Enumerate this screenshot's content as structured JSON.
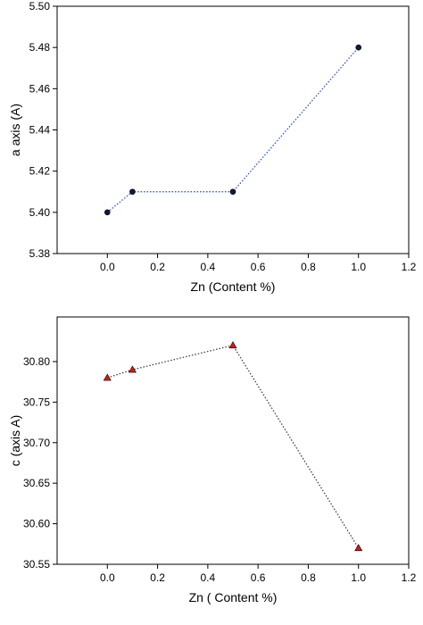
{
  "chart_data": [
    {
      "type": "line",
      "x_label": "Zn (Content %)",
      "y_label": "a axis (A)",
      "x": [
        0,
        0.1,
        0.5,
        1.0
      ],
      "values": [
        5.4,
        5.41,
        5.41,
        5.48
      ],
      "color": "#111a3d",
      "line_color": "#1f3fd6",
      "marker": "circle",
      "xlim": [
        -0.2,
        1.2
      ],
      "xticks": [
        {
          "value": 0,
          "label": "0.0"
        },
        0.2,
        0.4,
        0.6,
        0.8,
        {
          "value": 1,
          "label": "1.0"
        },
        1.2
      ],
      "ylim": [
        5.38,
        5.5
      ],
      "yticks": [
        5.38,
        {
          "value": 5.4,
          "label": "5.40"
        },
        5.42,
        5.44,
        5.46,
        5.48,
        {
          "value": 5.5,
          "label": "5.50"
        }
      ]
    },
    {
      "type": "line",
      "x_label": "Zn ( Content %)",
      "y_label": "c (axis A)",
      "x": [
        0,
        0.1,
        0.5,
        1.0
      ],
      "values": [
        30.78,
        30.79,
        30.82,
        30.57
      ],
      "color": "#d81818",
      "line_color": "#333333",
      "marker": "triangle",
      "xlim": [
        -0.2,
        1.2
      ],
      "xticks": [
        {
          "value": 0,
          "label": "0.0"
        },
        0.2,
        0.4,
        0.6,
        0.8,
        {
          "value": 1,
          "label": "1.0"
        },
        1.2
      ],
      "ylim": [
        30.55,
        30.855
      ],
      "yticks": [
        30.55,
        {
          "value": 30.6,
          "label": "30.60"
        },
        30.65,
        {
          "value": 30.7,
          "label": "30.70"
        },
        30.75,
        {
          "value": 30.8,
          "label": "30.80"
        }
      ]
    }
  ]
}
